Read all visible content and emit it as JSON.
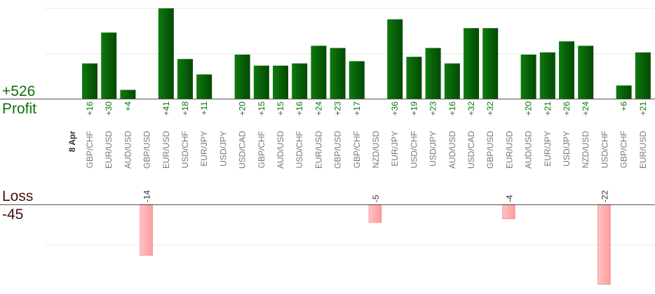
{
  "summary": {
    "profit_total": "+526",
    "profit_label": "Profit",
    "loss_label": "Loss",
    "loss_total": "-45"
  },
  "colors": {
    "profit_bar": "#0a6b0a",
    "profit_text": "#0c700c",
    "loss_bar": "#ffb3b3",
    "loss_text": "#4a0f0f",
    "category_text": "#777777",
    "grid": "#e8e8e8"
  },
  "chart_data": {
    "type": "bar",
    "date_label": "8 Apr",
    "categories": [
      "GBP/CHF",
      "EUR/USD",
      "AUD/USD",
      "GBP/USD",
      "EUR/USD",
      "USD/CHF",
      "EUR/JPY",
      "USD/JPY",
      "USD/CAD",
      "GBP/CHF",
      "AUD/USD",
      "USD/CHF",
      "EUR/USD",
      "GBP/USD",
      "GBP/CHF",
      "NZD/USD",
      "EUR/JPY",
      "USD/CHF",
      "USD/JPY",
      "AUD/USD",
      "USD/CAD",
      "GBP/USD",
      "EUR/USD",
      "AUD/USD",
      "EUR/JPY",
      "USD/JPY",
      "NZD/USD",
      "USD/CHF",
      "GBP/CHF",
      "EUR/USD"
    ],
    "series": [
      {
        "values": [
          16,
          30,
          4,
          null,
          41,
          18,
          11,
          null,
          20,
          15,
          15,
          16,
          24,
          23,
          17,
          null,
          36,
          19,
          23,
          16,
          32,
          32,
          null,
          20,
          21,
          26,
          24,
          null,
          6,
          21
        ]
      },
      {
        "values": [
          null,
          null,
          null,
          -14,
          null,
          null,
          null,
          null,
          null,
          null,
          null,
          null,
          null,
          null,
          null,
          -5,
          null,
          null,
          null,
          null,
          null,
          null,
          -4,
          null,
          null,
          null,
          null,
          -22,
          null,
          null
        ]
      }
    ],
    "profit_labels": [
      "+16",
      "+30",
      "+4",
      "",
      "+41",
      "+18",
      "+11",
      "",
      "+20",
      "+15",
      "+15",
      "+16",
      "+24",
      "+23",
      "+17",
      "",
      "+36",
      "+19",
      "+23",
      "+16",
      "+32",
      "+32",
      "",
      "+20",
      "+21",
      "+26",
      "+24",
      "",
      "+6",
      "+21"
    ],
    "loss_labels": [
      "",
      "",
      "",
      "-14",
      "",
      "",
      "",
      "",
      "",
      "",
      "",
      "",
      "",
      "",
      "",
      "-5",
      "",
      "",
      "",
      "",
      "",
      "",
      "-4",
      "",
      "",
      "",
      "",
      "-22",
      "",
      ""
    ]
  }
}
